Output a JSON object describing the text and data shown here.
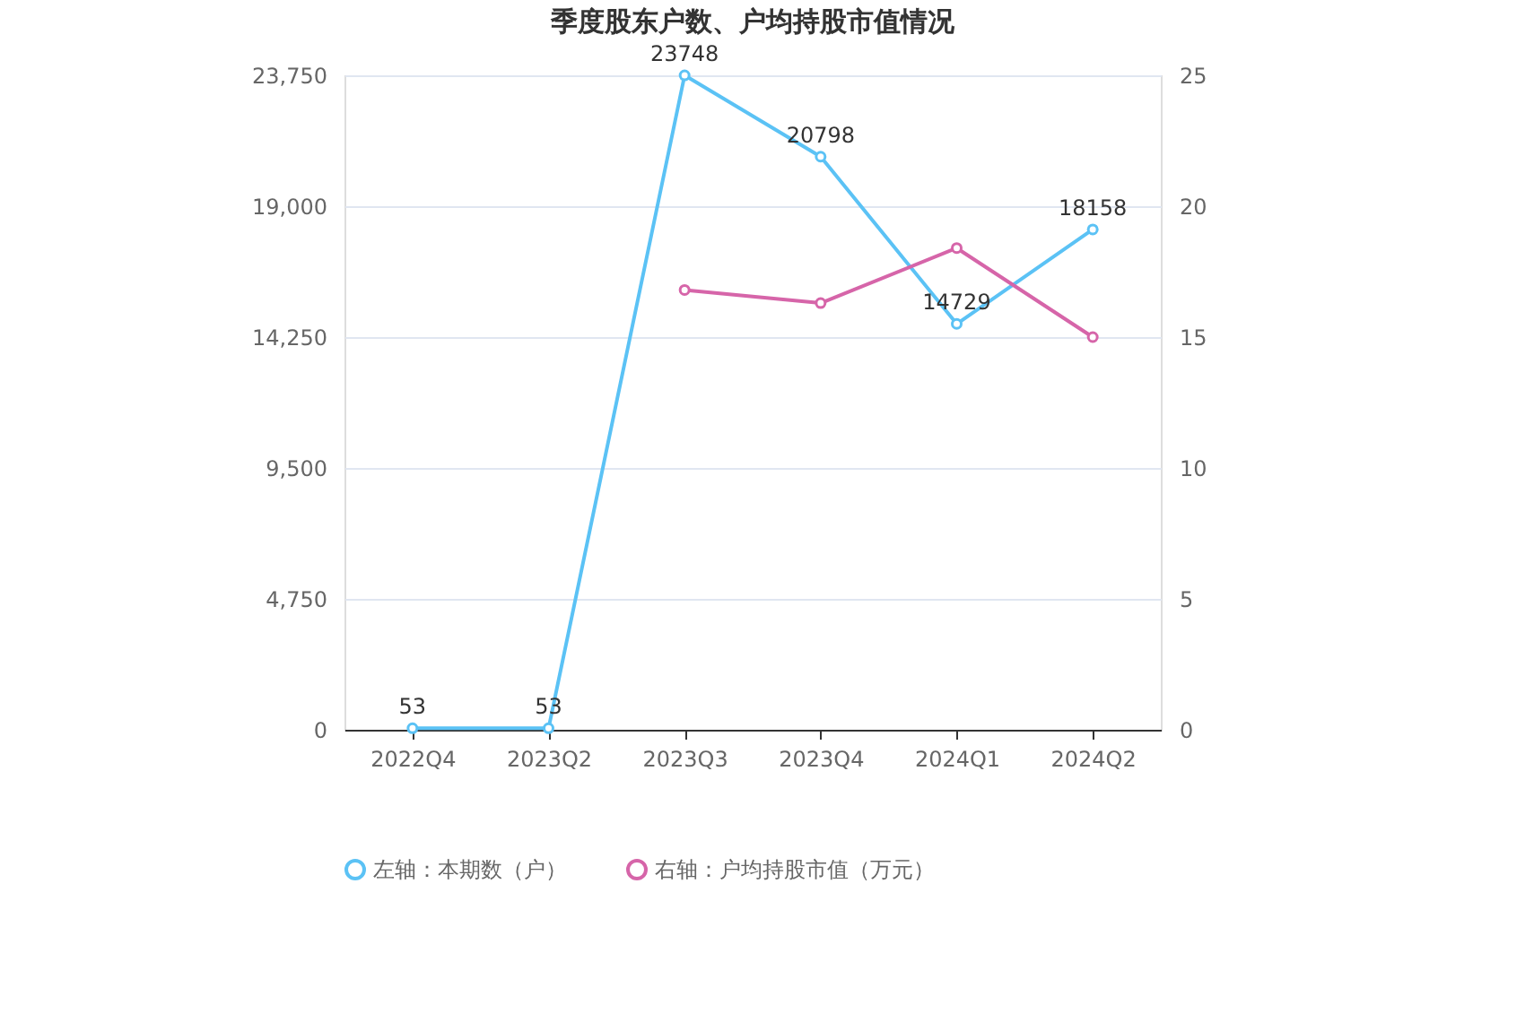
{
  "chart_data": {
    "type": "line",
    "title": "季度股东户数、户均持股市值情况",
    "categories": [
      "2022Q4",
      "2023Q2",
      "2023Q3",
      "2023Q4",
      "2024Q1",
      "2024Q2"
    ],
    "series": [
      {
        "name": "左轴：本期数（户）",
        "color": "#5bc2f5",
        "values": [
          53,
          53,
          23748,
          20798,
          14729,
          18158
        ],
        "value_labels": [
          "53",
          "53",
          "23748",
          "20798",
          "14729",
          "18158"
        ]
      },
      {
        "name": "右轴：户均持股市值（万元）",
        "color": "#d665a9",
        "values": [
          null,
          null,
          16.8,
          16.3,
          18.4,
          15.0
        ],
        "axis": "y2"
      }
    ],
    "ylim": [
      0,
      23750
    ],
    "yticks": [
      0,
      {
        "value": 4750,
        "label": "4,750"
      },
      {
        "value": 9500,
        "label": "9,500"
      },
      {
        "value": 14250,
        "label": "14,250"
      },
      {
        "value": 19000,
        "label": "19,000"
      },
      {
        "value": 23750,
        "label": "23,750"
      }
    ],
    "y2lim": [
      0,
      25
    ],
    "y2ticks": [
      0,
      5,
      10,
      15,
      20,
      25
    ],
    "grid": "y",
    "legend": "bottom",
    "marker": "circle",
    "line_style": "solid"
  }
}
